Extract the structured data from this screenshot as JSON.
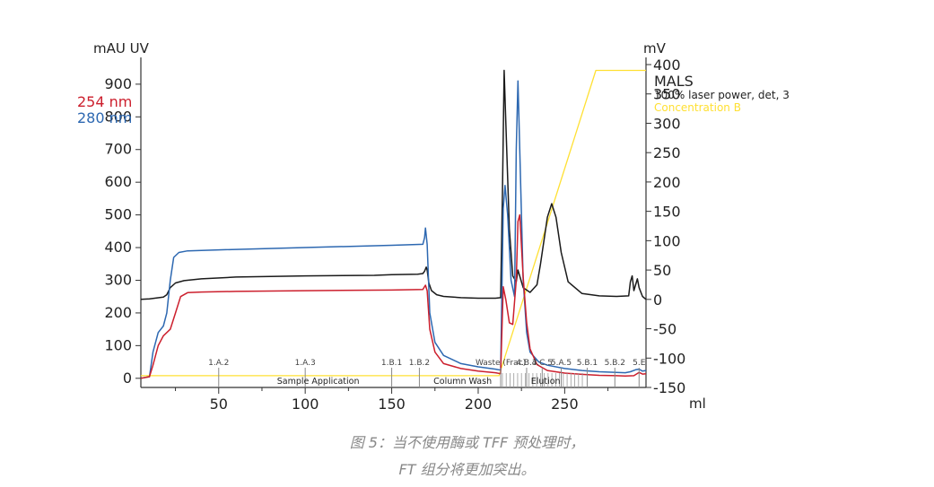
{
  "chart_data": {
    "type": "line",
    "left_axis_title": "mAU UV",
    "right_axis_title": "mV",
    "x_unit": "ml",
    "x_ticks": [
      50,
      100,
      150,
      200,
      250
    ],
    "xlim": [
      5,
      297
    ],
    "left_ylim": [
      -28,
      960
    ],
    "left_ticks": [
      0,
      100,
      200,
      300,
      400,
      500,
      600,
      700,
      800,
      900
    ],
    "right_ylim": [
      -150,
      400
    ],
    "right_ticks": [
      -150,
      -100,
      -50,
      0,
      50,
      100,
      150,
      200,
      250,
      300,
      350,
      400
    ],
    "legend": {
      "red": "254 nm",
      "blue": "280 nm",
      "mals_title": "MALS",
      "mals_subtitle": "100% laser power, det, 3",
      "conc": "Concentration B"
    },
    "series": [
      {
        "name": "254 nm",
        "axis": "left",
        "color": "#cc1f2d",
        "points": [
          [
            5,
            0
          ],
          [
            10,
            5
          ],
          [
            12,
            40
          ],
          [
            15,
            100
          ],
          [
            18,
            130
          ],
          [
            22,
            150
          ],
          [
            25,
            200
          ],
          [
            28,
            250
          ],
          [
            32,
            262
          ],
          [
            40,
            264
          ],
          [
            60,
            266
          ],
          [
            100,
            268
          ],
          [
            150,
            270
          ],
          [
            168,
            272
          ],
          [
            169.5,
            285
          ],
          [
            170.5,
            268
          ],
          [
            172,
            150
          ],
          [
            175,
            80
          ],
          [
            180,
            45
          ],
          [
            190,
            30
          ],
          [
            200,
            22
          ],
          [
            210,
            17
          ],
          [
            213,
            14
          ],
          [
            214.5,
            280
          ],
          [
            216,
            240
          ],
          [
            218,
            170
          ],
          [
            220,
            165
          ],
          [
            222,
            300
          ],
          [
            223,
            480
          ],
          [
            224,
            500
          ],
          [
            226,
            310
          ],
          [
            228,
            170
          ],
          [
            230,
            90
          ],
          [
            234,
            42
          ],
          [
            240,
            24
          ],
          [
            250,
            16
          ],
          [
            260,
            12
          ],
          [
            270,
            9
          ],
          [
            280,
            8
          ],
          [
            285,
            7
          ],
          [
            290,
            8
          ],
          [
            293,
            18
          ],
          [
            295,
            13
          ],
          [
            297,
            14
          ]
        ]
      },
      {
        "name": "280 nm",
        "axis": "left",
        "color": "#2d68b1",
        "points": [
          [
            5,
            0
          ],
          [
            10,
            5
          ],
          [
            12,
            80
          ],
          [
            15,
            140
          ],
          [
            18,
            160
          ],
          [
            20,
            200
          ],
          [
            22,
            300
          ],
          [
            24,
            370
          ],
          [
            27,
            385
          ],
          [
            32,
            390
          ],
          [
            50,
            393
          ],
          [
            100,
            400
          ],
          [
            150,
            407
          ],
          [
            168,
            410
          ],
          [
            169,
            430
          ],
          [
            169.5,
            460
          ],
          [
            170.5,
            410
          ],
          [
            172,
            200
          ],
          [
            175,
            110
          ],
          [
            180,
            70
          ],
          [
            190,
            45
          ],
          [
            200,
            35
          ],
          [
            210,
            28
          ],
          [
            213,
            25
          ],
          [
            214.5,
            520
          ],
          [
            215.5,
            590
          ],
          [
            217,
            500
          ],
          [
            219,
            300
          ],
          [
            221,
            250
          ],
          [
            222,
            700
          ],
          [
            223,
            910
          ],
          [
            224,
            700
          ],
          [
            226,
            300
          ],
          [
            228,
            140
          ],
          [
            230,
            80
          ],
          [
            235,
            50
          ],
          [
            240,
            40
          ],
          [
            250,
            30
          ],
          [
            260,
            24
          ],
          [
            270,
            20
          ],
          [
            280,
            18
          ],
          [
            285,
            17
          ],
          [
            288,
            20
          ],
          [
            291,
            26
          ],
          [
            293,
            28
          ],
          [
            295,
            22
          ],
          [
            297,
            24
          ]
        ]
      },
      {
        "name": "MALS",
        "axis": "right",
        "color": "#1a1a1a",
        "points": [
          [
            5,
            0
          ],
          [
            10,
            1
          ],
          [
            18,
            4
          ],
          [
            20,
            8
          ],
          [
            22,
            20
          ],
          [
            25,
            28
          ],
          [
            30,
            32
          ],
          [
            40,
            35
          ],
          [
            60,
            38
          ],
          [
            100,
            40
          ],
          [
            140,
            41
          ],
          [
            150,
            42
          ],
          [
            165,
            43
          ],
          [
            168,
            44
          ],
          [
            169,
            48
          ],
          [
            170,
            55
          ],
          [
            170.5,
            50
          ],
          [
            171.5,
            28
          ],
          [
            173,
            15
          ],
          [
            176,
            8
          ],
          [
            180,
            5
          ],
          [
            190,
            3
          ],
          [
            200,
            2
          ],
          [
            210,
            2
          ],
          [
            213,
            3
          ],
          [
            214,
            180
          ],
          [
            215,
            390
          ],
          [
            216,
            300
          ],
          [
            218,
            120
          ],
          [
            220,
            40
          ],
          [
            222,
            30
          ],
          [
            223,
            50
          ],
          [
            226,
            20
          ],
          [
            230,
            12
          ],
          [
            234,
            25
          ],
          [
            236,
            60
          ],
          [
            240,
            140
          ],
          [
            242.5,
            163
          ],
          [
            245,
            140
          ],
          [
            248,
            80
          ],
          [
            252,
            30
          ],
          [
            260,
            10
          ],
          [
            270,
            6
          ],
          [
            280,
            5
          ],
          [
            287,
            6
          ],
          [
            288,
            30
          ],
          [
            289,
            40
          ],
          [
            290,
            15
          ],
          [
            292,
            35
          ],
          [
            293,
            20
          ],
          [
            295,
            5
          ],
          [
            297,
            0
          ]
        ]
      },
      {
        "name": "Concentration B",
        "axis": "right",
        "color": "#ffe033",
        "points": [
          [
            5,
            -130
          ],
          [
            212,
            -130
          ],
          [
            268,
            390
          ],
          [
            297,
            390
          ]
        ]
      }
    ],
    "fraction_markers": [
      {
        "x": 50,
        "label": "1.A.2"
      },
      {
        "x": 100,
        "label": "1.A.3"
      },
      {
        "x": 150,
        "label": "1.B.1"
      },
      {
        "x": 166,
        "label": "1.B.2"
      },
      {
        "x": 213,
        "label": "Waste (Frac)"
      },
      {
        "x": 228,
        "label": "4.B.3"
      },
      {
        "x": 237,
        "label": "4.C.5"
      },
      {
        "x": 248,
        "label": "5.A.5"
      },
      {
        "x": 263,
        "label": "5.B.1"
      },
      {
        "x": 279,
        "label": "5.B.2"
      },
      {
        "x": 293,
        "label": "5.E"
      }
    ],
    "phases": [
      {
        "from": 25,
        "to": 190,
        "label": "Sample Application"
      },
      {
        "from": 172,
        "to": 210,
        "label": "Column Wash"
      },
      {
        "from": 216,
        "to": 262,
        "label": "Elution"
      }
    ]
  },
  "caption": {
    "line1": "图 5：当不使用酶或 TFF 预处理时，",
    "line2": "FT 组分将更加突出。"
  }
}
